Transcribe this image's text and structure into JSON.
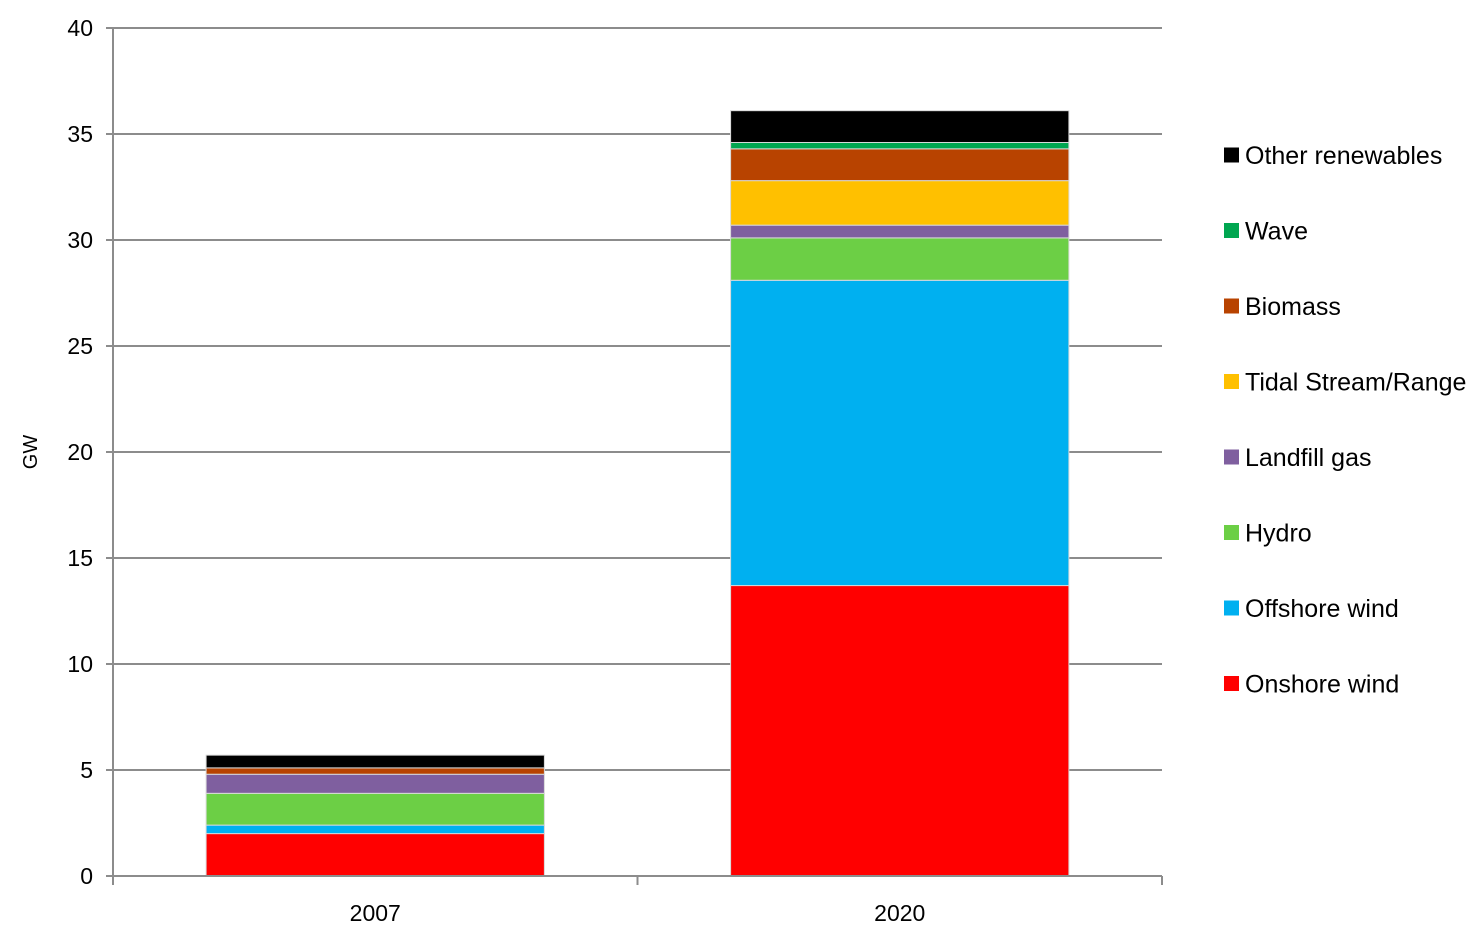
{
  "chart_data": {
    "type": "bar",
    "stacked": true,
    "categories": [
      "2007",
      "2020"
    ],
    "xlabel": "",
    "ylabel": "GW",
    "ylim": [
      0,
      40
    ],
    "yticks": [
      0,
      5,
      10,
      15,
      20,
      25,
      30,
      35,
      40
    ],
    "grid": true,
    "legend_position": "right",
    "series": [
      {
        "name": "Onshore wind",
        "color": "#ff0000",
        "values": [
          2.0,
          13.7
        ]
      },
      {
        "name": "Offshore wind",
        "color": "#00b0f0",
        "values": [
          0.4,
          14.4
        ]
      },
      {
        "name": "Hydro",
        "color": "#6ccf45",
        "values": [
          1.5,
          2.0
        ]
      },
      {
        "name": "Landfill gas",
        "color": "#7f5f9f",
        "values": [
          0.9,
          0.6
        ]
      },
      {
        "name": "Tidal Stream/Range",
        "color": "#ffc000",
        "values": [
          0.0,
          2.1
        ]
      },
      {
        "name": "Biomass",
        "color": "#b84300",
        "values": [
          0.3,
          1.5
        ]
      },
      {
        "name": "Wave",
        "color": "#00a650",
        "values": [
          0.0,
          0.3
        ]
      },
      {
        "name": "Other renewables",
        "color": "#000000",
        "values": [
          0.6,
          1.5
        ]
      }
    ]
  }
}
